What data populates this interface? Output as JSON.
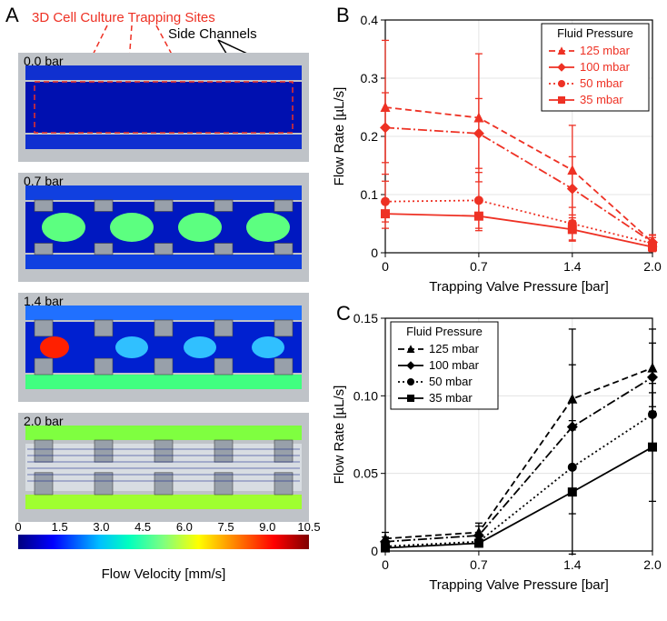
{
  "panelA": {
    "label": "A",
    "title_red": "3D Cell Culture Trapping Sites",
    "title_black": "Side Channels",
    "pressures": [
      "0.0 bar",
      "0.7 bar",
      "1.4 bar",
      "2.0 bar"
    ],
    "colorbar": {
      "title": "Flow Velocity [mm/s]",
      "ticks": [
        0,
        1.5,
        3.0,
        4.5,
        6.0,
        7.5,
        9.0,
        10.5
      ],
      "stops": [
        {
          "p": 0.0,
          "c": "#00007f"
        },
        {
          "p": 0.12,
          "c": "#0000ff"
        },
        {
          "p": 0.28,
          "c": "#00bfff"
        },
        {
          "p": 0.38,
          "c": "#00ffbf"
        },
        {
          "p": 0.5,
          "c": "#7fff7f"
        },
        {
          "p": 0.62,
          "c": "#ffff00"
        },
        {
          "p": 0.75,
          "c": "#ff7f00"
        },
        {
          "p": 0.88,
          "c": "#ff0000"
        },
        {
          "p": 1.0,
          "c": "#7f0000"
        }
      ]
    }
  },
  "panelB": {
    "label": "B",
    "xlabel": "Trapping Valve Pressure [bar]",
    "ylabel": "Flow Rate [µL/s]",
    "xlim": [
      0,
      2.0
    ],
    "xticks": [
      0,
      0.7,
      1.4,
      2.0
    ],
    "ylim": [
      0,
      0.4
    ],
    "yticks": [
      0,
      0.1,
      0.2,
      0.3,
      0.4
    ],
    "legend_title": "Fluid Pressure",
    "color": "#ee3124",
    "series": [
      {
        "name": "125 mbar",
        "marker": "triangle",
        "dash": "7,4",
        "x": [
          0,
          0.7,
          1.4,
          2.0
        ],
        "y": [
          0.25,
          0.232,
          0.142,
          0.018
        ],
        "err": [
          0.115,
          0.11,
          0.077,
          0.013
        ]
      },
      {
        "name": "100 mbar",
        "marker": "diamond",
        "dash": "10,3,2,3",
        "x": [
          0,
          0.7,
          1.4,
          2.0
        ],
        "y": [
          0.215,
          0.205,
          0.11,
          0.018
        ],
        "err": [
          0.06,
          0.06,
          0.055,
          0.012
        ]
      },
      {
        "name": "50 mbar",
        "marker": "circle",
        "dash": "2,3",
        "x": [
          0,
          0.7,
          1.4,
          2.0
        ],
        "y": [
          0.088,
          0.09,
          0.05,
          0.016
        ],
        "err": [
          0.035,
          0.048,
          0.028,
          0.01
        ]
      },
      {
        "name": "35 mbar",
        "marker": "square",
        "dash": "none",
        "x": [
          0,
          0.7,
          1.4,
          2.0
        ],
        "y": [
          0.067,
          0.063,
          0.04,
          0.01
        ],
        "err": [
          0.025,
          0.025,
          0.02,
          0.008
        ]
      }
    ]
  },
  "panelC": {
    "label": "C",
    "xlabel": "Trapping Valve Pressure [bar]",
    "ylabel": "Flow Rate [µL/s]",
    "xlim": [
      0,
      2.0
    ],
    "xticks": [
      0,
      0.7,
      1.4,
      2.0
    ],
    "ylim": [
      0,
      0.15
    ],
    "yticks": [
      0,
      0.05,
      0.1,
      0.15
    ],
    "legend_title": "Fluid Pressure",
    "color": "#000000",
    "series": [
      {
        "name": "125 mbar",
        "marker": "triangle",
        "dash": "7,4",
        "x": [
          0,
          0.7,
          1.4,
          2.0
        ],
        "y": [
          0.008,
          0.012,
          0.098,
          0.118
        ],
        "err": [
          0.004,
          0.006,
          0.045,
          0.025
        ]
      },
      {
        "name": "100 mbar",
        "marker": "diamond",
        "dash": "10,3,2,3",
        "x": [
          0,
          0.7,
          1.4,
          2.0
        ],
        "y": [
          0.006,
          0.01,
          0.08,
          0.112
        ],
        "err": [
          0.003,
          0.006,
          0.04,
          0.022
        ]
      },
      {
        "name": "50 mbar",
        "marker": "circle",
        "dash": "2,3",
        "x": [
          0,
          0.7,
          1.4,
          2.0
        ],
        "y": [
          0.003,
          0.006,
          0.054,
          0.088
        ],
        "err": [
          0.002,
          0.003,
          0.03,
          0.02
        ]
      },
      {
        "name": "35 mbar",
        "marker": "square",
        "dash": "none",
        "x": [
          0,
          0.7,
          1.4,
          2.0
        ],
        "y": [
          0.002,
          0.005,
          0.038,
          0.067
        ],
        "err": [
          0.001,
          0.002,
          0.04,
          0.035
        ]
      }
    ]
  }
}
